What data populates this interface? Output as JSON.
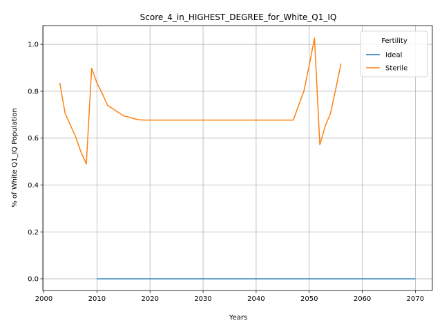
{
  "chart_data": {
    "type": "line",
    "title": "Score_4_in_HIGHEST_DEGREE_for_White_Q1_IQ",
    "xlabel": "Years",
    "ylabel": "% of White Q1_IQ Population",
    "xlim": [
      1999.8,
      2073.2
    ],
    "ylim": [
      -0.05,
      1.08
    ],
    "x_ticks": [
      2000,
      2010,
      2020,
      2030,
      2040,
      2050,
      2060,
      2070
    ],
    "y_ticks": [
      0.0,
      0.2,
      0.4,
      0.6,
      0.8,
      1.0
    ],
    "x_tick_labels": [
      "2000",
      "2010",
      "2020",
      "2030",
      "2040",
      "2050",
      "2060",
      "2070"
    ],
    "y_tick_labels": [
      "0.0",
      "0.2",
      "0.4",
      "0.6",
      "0.8",
      "1.0"
    ],
    "grid": true,
    "legend": {
      "title": "Fertility",
      "position": "top-right"
    },
    "series": [
      {
        "name": "Ideal",
        "color": "#1f77b4",
        "points": [
          [
            2010,
            0.0
          ],
          [
            2070,
            0.0
          ]
        ]
      },
      {
        "name": "Sterile",
        "color": "#ff7f0e",
        "points": [
          [
            2003,
            0.835
          ],
          [
            2004,
            0.705
          ],
          [
            2005,
            0.655
          ],
          [
            2006,
            0.605
          ],
          [
            2007,
            0.54
          ],
          [
            2008,
            0.49
          ],
          [
            2009,
            0.898
          ],
          [
            2010,
            0.835
          ],
          [
            2011,
            0.79
          ],
          [
            2012,
            0.74
          ],
          [
            2013,
            0.725
          ],
          [
            2014,
            0.71
          ],
          [
            2015,
            0.695
          ],
          [
            2016,
            0.69
          ],
          [
            2017,
            0.683
          ],
          [
            2018,
            0.678
          ],
          [
            2019,
            0.677
          ],
          [
            2047,
            0.677
          ],
          [
            2048,
            0.74
          ],
          [
            2049,
            0.8
          ],
          [
            2050,
            0.91
          ],
          [
            2051,
            1.027
          ],
          [
            2052,
            0.572
          ],
          [
            2053,
            0.65
          ],
          [
            2054,
            0.705
          ],
          [
            2055,
            0.81
          ],
          [
            2056,
            0.918
          ]
        ]
      }
    ]
  }
}
